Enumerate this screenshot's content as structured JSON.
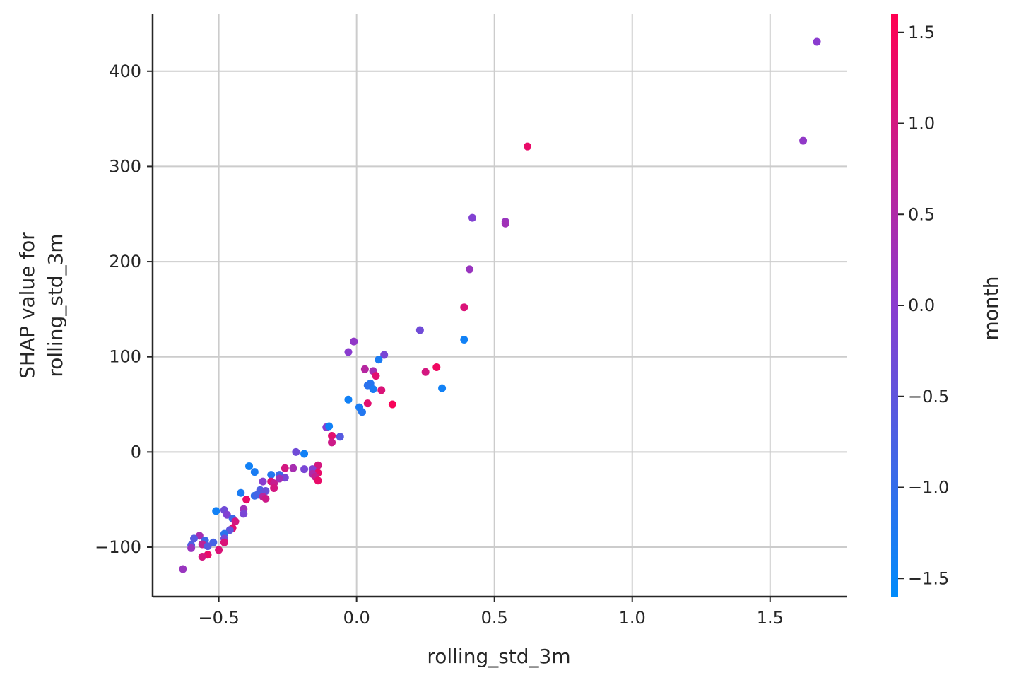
{
  "chart_data": {
    "type": "scatter",
    "title": "",
    "xlabel": "rolling_std_3m",
    "ylabel_lines": [
      "SHAP value for",
      "rolling_std_3m"
    ],
    "xlim": [
      -0.74,
      1.78
    ],
    "ylim": [
      -152,
      460
    ],
    "x_ticks": [
      -0.5,
      0.0,
      0.5,
      1.0,
      1.5
    ],
    "x_tick_labels": [
      "−0.5",
      "0.0",
      "0.5",
      "1.0",
      "1.5"
    ],
    "y_ticks": [
      -100,
      0,
      100,
      200,
      300,
      400
    ],
    "y_tick_labels": [
      "−100",
      "0",
      "100",
      "200",
      "300",
      "400"
    ],
    "grid": true,
    "colorbar": {
      "label": "month",
      "range": [
        -1.6,
        1.6
      ],
      "ticks": [
        -1.5,
        -1.0,
        -0.5,
        0.0,
        0.5,
        1.0,
        1.5
      ],
      "tick_labels": [
        "−1.5",
        "−1.0",
        "−0.5",
        "0.0",
        "0.5",
        "1.0",
        "1.5"
      ],
      "colormap": [
        "#008bfb",
        "#ff0051"
      ]
    },
    "points": [
      {
        "x": 1.67,
        "y": 431,
        "c": 0.0
      },
      {
        "x": 1.62,
        "y": 327,
        "c": 0.1
      },
      {
        "x": 0.62,
        "y": 321,
        "c": 1.3
      },
      {
        "x": 0.42,
        "y": 246,
        "c": -0.1
      },
      {
        "x": 0.54,
        "y": 242,
        "c": 0.2
      },
      {
        "x": 0.54,
        "y": 240,
        "c": 0.3
      },
      {
        "x": 0.41,
        "y": 192,
        "c": 0.2
      },
      {
        "x": 0.39,
        "y": 152,
        "c": 1.1
      },
      {
        "x": 0.23,
        "y": 128,
        "c": -0.3
      },
      {
        "x": 0.39,
        "y": 118,
        "c": -1.4
      },
      {
        "x": -0.01,
        "y": 116,
        "c": 0.1
      },
      {
        "x": -0.03,
        "y": 105,
        "c": 0.0
      },
      {
        "x": 0.1,
        "y": 102,
        "c": -0.2
      },
      {
        "x": 0.08,
        "y": 97,
        "c": -1.3
      },
      {
        "x": 0.29,
        "y": 89,
        "c": 1.4
      },
      {
        "x": 0.03,
        "y": 87,
        "c": 0.6
      },
      {
        "x": 0.06,
        "y": 85,
        "c": 0.4
      },
      {
        "x": 0.25,
        "y": 84,
        "c": 1.0
      },
      {
        "x": 0.07,
        "y": 80,
        "c": 1.2
      },
      {
        "x": 0.05,
        "y": 72,
        "c": -1.2
      },
      {
        "x": 0.04,
        "y": 70,
        "c": -1.1
      },
      {
        "x": 0.31,
        "y": 67,
        "c": -1.4
      },
      {
        "x": 0.06,
        "y": 66,
        "c": -1.3
      },
      {
        "x": 0.09,
        "y": 65,
        "c": 1.1
      },
      {
        "x": -0.03,
        "y": 55,
        "c": -1.4
      },
      {
        "x": 0.04,
        "y": 51,
        "c": 1.2
      },
      {
        "x": 0.13,
        "y": 50,
        "c": 1.5
      },
      {
        "x": 0.01,
        "y": 47,
        "c": -1.3
      },
      {
        "x": 0.02,
        "y": 42,
        "c": -1.2
      },
      {
        "x": -0.11,
        "y": 26,
        "c": 0.0
      },
      {
        "x": -0.1,
        "y": 27,
        "c": -1.4
      },
      {
        "x": -0.09,
        "y": 17,
        "c": 1.2
      },
      {
        "x": -0.06,
        "y": 16,
        "c": -0.6
      },
      {
        "x": -0.09,
        "y": 10,
        "c": 0.9
      },
      {
        "x": -0.22,
        "y": 0,
        "c": -0.3
      },
      {
        "x": -0.19,
        "y": -2,
        "c": -1.4
      },
      {
        "x": -0.39,
        "y": -15,
        "c": -1.4
      },
      {
        "x": -0.14,
        "y": -14,
        "c": 1.0
      },
      {
        "x": -0.26,
        "y": -17,
        "c": 1.0
      },
      {
        "x": -0.23,
        "y": -17,
        "c": 0.4
      },
      {
        "x": -0.19,
        "y": -18,
        "c": -0.2
      },
      {
        "x": -0.16,
        "y": -18,
        "c": -0.1
      },
      {
        "x": -0.37,
        "y": -21,
        "c": -1.3
      },
      {
        "x": -0.14,
        "y": -22,
        "c": 1.3
      },
      {
        "x": -0.16,
        "y": -23,
        "c": 0.5
      },
      {
        "x": -0.31,
        "y": -24,
        "c": -1.2
      },
      {
        "x": -0.28,
        "y": -24,
        "c": -0.9
      },
      {
        "x": -0.15,
        "y": -26,
        "c": 0.8
      },
      {
        "x": -0.26,
        "y": -27,
        "c": -0.2
      },
      {
        "x": -0.28,
        "y": -28,
        "c": 0.3
      },
      {
        "x": -0.14,
        "y": -30,
        "c": 1.3
      },
      {
        "x": -0.31,
        "y": -31,
        "c": 1.1
      },
      {
        "x": -0.34,
        "y": -31,
        "c": 0.0
      },
      {
        "x": -0.3,
        "y": -33,
        "c": 0.8
      },
      {
        "x": -0.3,
        "y": -38,
        "c": 1.0
      },
      {
        "x": -0.35,
        "y": -40,
        "c": -0.7
      },
      {
        "x": -0.33,
        "y": -41,
        "c": -0.4
      },
      {
        "x": -0.42,
        "y": -43,
        "c": -1.3
      },
      {
        "x": -0.35,
        "y": -44,
        "c": -0.5
      },
      {
        "x": -0.37,
        "y": -46,
        "c": -1.0
      },
      {
        "x": -0.36,
        "y": -45,
        "c": -0.8
      },
      {
        "x": -0.34,
        "y": -47,
        "c": 0.6
      },
      {
        "x": -0.33,
        "y": -49,
        "c": 0.9
      },
      {
        "x": -0.4,
        "y": -50,
        "c": 1.3
      },
      {
        "x": -0.41,
        "y": -60,
        "c": 0.3
      },
      {
        "x": -0.48,
        "y": -61,
        "c": -0.3
      },
      {
        "x": -0.51,
        "y": -62,
        "c": -1.4
      },
      {
        "x": -0.41,
        "y": -65,
        "c": -0.2
      },
      {
        "x": -0.47,
        "y": -66,
        "c": -0.1
      },
      {
        "x": -0.45,
        "y": -70,
        "c": -0.9
      },
      {
        "x": -0.44,
        "y": -73,
        "c": 1.0
      },
      {
        "x": -0.45,
        "y": -80,
        "c": 1.2
      },
      {
        "x": -0.46,
        "y": -82,
        "c": -0.5
      },
      {
        "x": -0.48,
        "y": -86,
        "c": -1.1
      },
      {
        "x": -0.57,
        "y": -88,
        "c": 0.4
      },
      {
        "x": -0.48,
        "y": -91,
        "c": -0.2
      },
      {
        "x": -0.59,
        "y": -91,
        "c": -0.6
      },
      {
        "x": -0.55,
        "y": -93,
        "c": -0.9
      },
      {
        "x": -0.48,
        "y": -95,
        "c": 1.1
      },
      {
        "x": -0.52,
        "y": -95,
        "c": -0.8
      },
      {
        "x": -0.56,
        "y": -97,
        "c": 0.7
      },
      {
        "x": -0.6,
        "y": -98,
        "c": -0.7
      },
      {
        "x": -0.54,
        "y": -99,
        "c": -0.6
      },
      {
        "x": -0.6,
        "y": -101,
        "c": 0.2
      },
      {
        "x": -0.5,
        "y": -103,
        "c": 1.1
      },
      {
        "x": -0.54,
        "y": -108,
        "c": 1.3
      },
      {
        "x": -0.56,
        "y": -110,
        "c": 1.0
      },
      {
        "x": -0.63,
        "y": -123,
        "c": 0.2
      }
    ]
  }
}
